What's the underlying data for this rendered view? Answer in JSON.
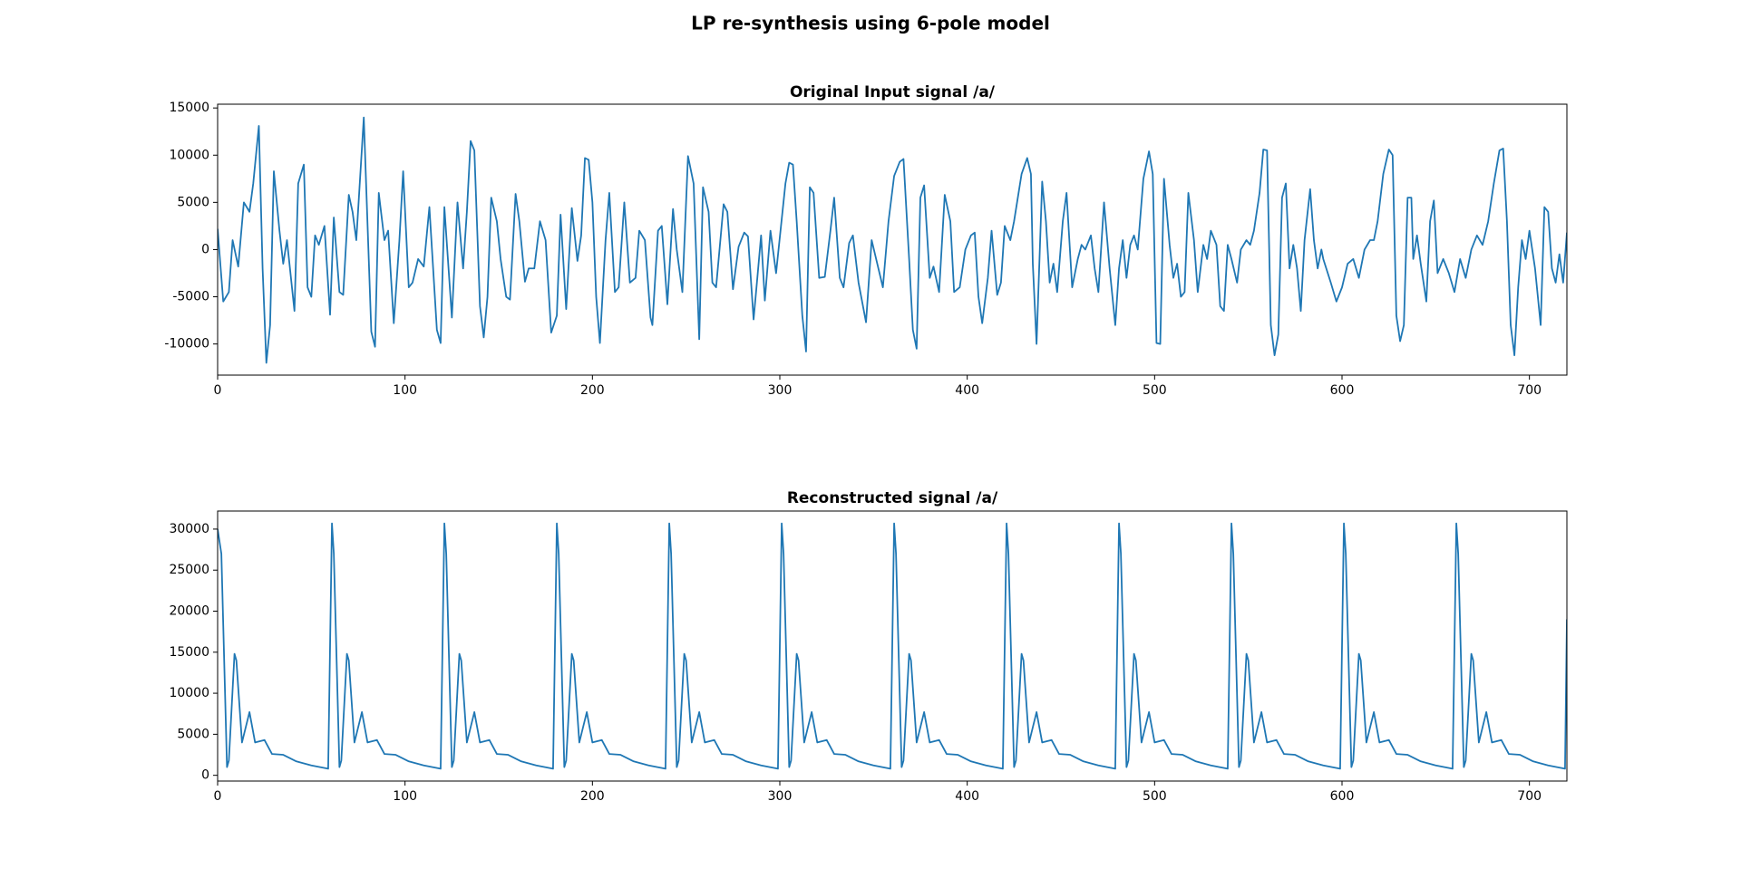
{
  "title": "LP re-synthesis using 6-pole model",
  "chart_data": [
    {
      "type": "line",
      "title": "Original Input signal /a/",
      "color": "#1f77b4",
      "xlim": [
        0,
        720
      ],
      "xticks": [
        0,
        100,
        200,
        300,
        400,
        500,
        600,
        700
      ],
      "ylim": [
        -13300,
        15400
      ],
      "yticks": [
        -10000,
        -5000,
        0,
        5000,
        10000,
        15000
      ],
      "x": [
        0,
        3,
        6,
        8,
        11,
        14,
        17,
        19,
        22,
        24,
        26,
        28,
        30,
        33,
        35,
        37,
        41,
        43,
        46,
        48,
        50,
        52,
        54,
        57,
        60,
        62,
        65,
        67,
        70,
        72,
        74,
        78,
        82,
        84,
        86,
        89,
        91,
        94,
        97,
        99,
        102,
        104,
        107,
        110,
        113,
        117,
        119,
        121,
        125,
        128,
        131,
        133,
        135,
        137,
        140,
        142,
        144,
        146,
        149,
        151,
        154,
        156,
        159,
        161,
        164,
        166,
        169,
        172,
        175,
        178,
        181,
        183,
        186,
        189,
        192,
        194,
        196,
        198,
        200,
        202,
        204,
        207,
        209,
        212,
        214,
        217,
        220,
        223,
        225,
        228,
        231,
        232,
        235,
        237,
        240,
        243,
        245,
        248,
        251,
        254,
        257,
        259,
        262,
        264,
        266,
        270,
        272,
        275,
        278,
        281,
        283,
        286,
        288,
        290,
        292,
        295,
        298,
        303,
        305,
        307,
        309,
        312,
        314,
        316,
        318,
        321,
        324,
        327,
        329,
        332,
        334,
        337,
        339,
        342,
        346,
        349,
        352,
        355,
        358,
        361,
        364,
        366,
        369,
        371,
        373,
        375,
        377,
        380,
        382,
        385,
        388,
        391,
        393,
        396,
        399,
        402,
        404,
        406,
        408,
        411,
        413,
        416,
        418,
        420,
        423,
        425,
        429,
        432,
        434,
        435,
        437,
        440,
        442,
        444,
        446,
        448,
        451,
        453,
        456,
        459,
        461,
        463,
        466,
        468,
        470,
        473,
        476,
        479,
        481,
        483,
        485,
        487,
        489,
        491,
        494,
        497,
        499,
        501,
        503,
        505,
        508,
        510,
        512,
        514,
        516,
        518,
        521,
        523,
        526,
        528,
        530,
        533,
        535,
        537,
        539,
        541,
        544,
        546,
        549,
        551,
        553,
        556,
        558,
        560,
        562,
        564,
        566,
        568,
        570,
        572,
        574,
        576,
        578,
        580,
        583,
        585,
        587,
        589,
        590,
        594,
        597,
        600,
        603,
        606,
        609,
        612,
        615,
        617,
        619,
        622,
        625,
        627,
        629,
        631,
        633,
        635,
        637,
        638,
        640,
        642,
        645,
        647,
        649,
        651,
        654,
        657,
        660,
        663,
        666,
        669,
        672,
        675,
        678,
        681,
        684,
        686,
        688,
        690,
        692,
        694,
        696,
        698,
        700,
        703,
        706,
        708,
        710,
        712,
        714,
        716,
        718,
        720
      ],
      "values": [
        2200,
        -5500,
        -4500,
        1000,
        -1800,
        5000,
        4000,
        7000,
        13100,
        -2000,
        -12000,
        -8000,
        8300,
        2000,
        -1500,
        1000,
        -6500,
        7000,
        9000,
        -4000,
        -5000,
        1500,
        500,
        2500,
        -6900,
        3400,
        -4500,
        -4800,
        5800,
        4000,
        1000,
        14000,
        -8700,
        -10300,
        6000,
        1000,
        2000,
        -7800,
        1000,
        8300,
        -4000,
        -3500,
        -1000,
        -1800,
        4500,
        -8500,
        -9900,
        4500,
        -7200,
        5000,
        -2000,
        4000,
        11500,
        10500,
        -6000,
        -9300,
        -5000,
        5500,
        3000,
        -1000,
        -5000,
        -5300,
        5900,
        3000,
        -3400,
        -2000,
        -2000,
        3000,
        1000,
        -8800,
        -7000,
        3700,
        -6300,
        4400,
        -1200,
        1500,
        9700,
        9500,
        5000,
        -5000,
        -9900,
        1000,
        6000,
        -4500,
        -4000,
        5000,
        -3500,
        -3000,
        2000,
        1000,
        -7200,
        -8000,
        2000,
        2500,
        -5800,
        4300,
        0,
        -4500,
        9900,
        7000,
        -9500,
        6600,
        4000,
        -3500,
        -4000,
        4800,
        4000,
        -4200,
        300,
        1800,
        1400,
        -7400,
        -3000,
        1500,
        -5400,
        2000,
        -2500,
        7000,
        9200,
        9000,
        3000,
        -7000,
        -10800,
        6600,
        6000,
        -3000,
        -2900,
        2000,
        5500,
        -3000,
        -4000,
        700,
        1500,
        -3500,
        -7700,
        1000,
        -1500,
        -4000,
        3000,
        7800,
        9300,
        9600,
        -1000,
        -8500,
        -10500,
        5500,
        6800,
        -3000,
        -1800,
        -4500,
        5800,
        3000,
        -4500,
        -4000,
        0,
        1500,
        1800,
        -5000,
        -7800,
        -3000,
        2000,
        -4800,
        -3500,
        2500,
        1000,
        3000,
        8000,
        9700,
        8000,
        -1500,
        -10000,
        7200,
        3000,
        -3500,
        -1500,
        -4500,
        3000,
        6000,
        -4000,
        -1000,
        500,
        0,
        1500,
        -2000,
        -4500,
        5000,
        -2000,
        -8000,
        -2000,
        1000,
        -3000,
        500,
        1500,
        0,
        7500,
        10400,
        8000,
        -9900,
        -10000,
        7500,
        500,
        -3000,
        -1500,
        -5000,
        -4500,
        6000,
        1000,
        -4500,
        500,
        -1000,
        2000,
        500,
        -6000,
        -6500,
        500,
        -1000,
        -3500,
        0,
        1000,
        500,
        2000,
        6000,
        10600,
        10500,
        -8000,
        -11200,
        -9000,
        5500,
        7000,
        -2000,
        500,
        -2000,
        -6500,
        1000,
        6400,
        1000,
        -2000,
        0,
        -1000,
        -3500,
        -5500,
        -4000,
        -1500,
        -1000,
        -3000,
        0,
        1000,
        1000,
        3000,
        8000,
        10600,
        10000,
        -7000,
        -9700,
        -8000,
        5500,
        5500,
        -1000,
        1500,
        -1500,
        -5500,
        3000,
        5200,
        -2500,
        -1000,
        -2500,
        -4500,
        -1000,
        -3000,
        0,
        1500,
        500,
        3000,
        7000,
        10500,
        10700,
        3000,
        -8000,
        -11200,
        -4000,
        1000,
        -1000,
        2000,
        -2000,
        -8000,
        4500,
        4000,
        -2000,
        -3500,
        -500,
        -3500,
        1800
      ]
    },
    {
      "type": "line",
      "title": "Reconstructed signal /a/",
      "color": "#1f77b4",
      "xlim": [
        0,
        720
      ],
      "xticks": [
        0,
        100,
        200,
        300,
        400,
        500,
        600,
        700
      ],
      "ylim": [
        -700,
        32200
      ],
      "yticks": [
        0,
        5000,
        10000,
        15000,
        20000,
        25000,
        30000
      ],
      "x": [
        0,
        2,
        5,
        6,
        9,
        10,
        13,
        17,
        20,
        25,
        29,
        35,
        42,
        50,
        59,
        61,
        62,
        65,
        66,
        69,
        70,
        73,
        77,
        80,
        85,
        89,
        95,
        102,
        110,
        119,
        121,
        122,
        125,
        126,
        129,
        130,
        133,
        137,
        140,
        145,
        149,
        155,
        162,
        170,
        179,
        181,
        182,
        185,
        186,
        189,
        190,
        193,
        197,
        200,
        205,
        209,
        215,
        222,
        230,
        239,
        241,
        242,
        245,
        246,
        249,
        250,
        253,
        257,
        260,
        265,
        269,
        275,
        282,
        290,
        299,
        301,
        302,
        305,
        306,
        309,
        310,
        313,
        317,
        320,
        325,
        329,
        335,
        342,
        350,
        359,
        361,
        362,
        365,
        366,
        369,
        370,
        373,
        377,
        380,
        385,
        389,
        395,
        402,
        410,
        419,
        421,
        422,
        425,
        426,
        429,
        430,
        433,
        437,
        440,
        445,
        449,
        455,
        462,
        470,
        479,
        481,
        482,
        485,
        486,
        489,
        490,
        493,
        497,
        500,
        505,
        509,
        515,
        522,
        530,
        539,
        541,
        542,
        545,
        546,
        549,
        550,
        553,
        557,
        560,
        565,
        569,
        575,
        582,
        590,
        599,
        601,
        602,
        605,
        606,
        609,
        610,
        613,
        617,
        620,
        625,
        629,
        635,
        642,
        650,
        659,
        661,
        662,
        665,
        666,
        669,
        670,
        673,
        677,
        680,
        685,
        689,
        695,
        702,
        710,
        719,
        720
      ],
      "values": [
        30000,
        27000,
        1000,
        1800,
        14800,
        14000,
        4000,
        7700,
        4000,
        4300,
        2600,
        2500,
        1700,
        1200,
        800,
        30700,
        27000,
        1000,
        1800,
        14800,
        14000,
        4000,
        7700,
        4000,
        4300,
        2600,
        2500,
        1700,
        1200,
        800,
        30700,
        27000,
        1000,
        1800,
        14800,
        14000,
        4000,
        7700,
        4000,
        4300,
        2600,
        2500,
        1700,
        1200,
        800,
        30700,
        27000,
        1000,
        1800,
        14800,
        14000,
        4000,
        7700,
        4000,
        4300,
        2600,
        2500,
        1700,
        1200,
        800,
        30700,
        27000,
        1000,
        1800,
        14800,
        14000,
        4000,
        7700,
        4000,
        4300,
        2600,
        2500,
        1700,
        1200,
        800,
        30700,
        27000,
        1000,
        1800,
        14800,
        14000,
        4000,
        7700,
        4000,
        4300,
        2600,
        2500,
        1700,
        1200,
        800,
        30700,
        27000,
        1000,
        1800,
        14800,
        14000,
        4000,
        7700,
        4000,
        4300,
        2600,
        2500,
        1700,
        1200,
        800,
        30700,
        27000,
        1000,
        1800,
        14800,
        14000,
        4000,
        7700,
        4000,
        4300,
        2600,
        2500,
        1700,
        1200,
        800,
        30700,
        27000,
        1000,
        1800,
        14800,
        14000,
        4000,
        7700,
        4000,
        4300,
        2600,
        2500,
        1700,
        1200,
        800,
        30700,
        27000,
        1000,
        1800,
        14800,
        14000,
        4000,
        7700,
        4000,
        4300,
        2600,
        2500,
        1700,
        1200,
        800,
        30700,
        27000,
        1000,
        1800,
        14800,
        14000,
        4000,
        7700,
        4000,
        4300,
        2600,
        2500,
        1700,
        1200,
        800,
        30700,
        27000,
        1000,
        1800,
        14800,
        14000,
        4000,
        7700,
        4000,
        4300,
        2600,
        2500,
        1700,
        1200,
        800,
        19000
      ]
    }
  ]
}
